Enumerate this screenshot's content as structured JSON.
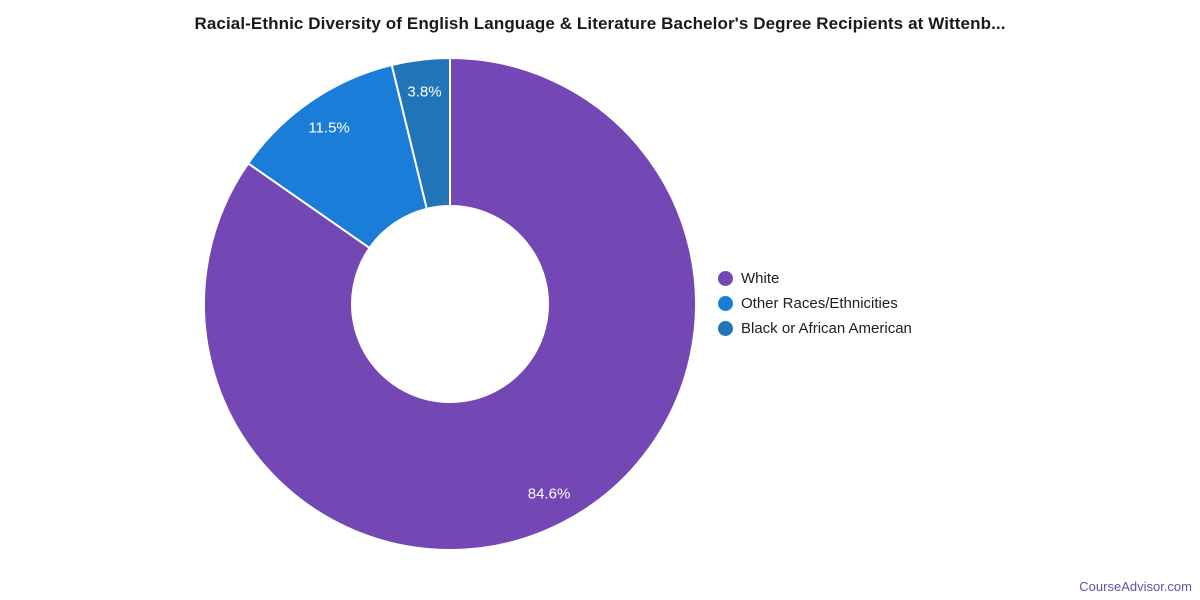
{
  "chart_data": {
    "type": "pie",
    "donut": true,
    "title": "Racial-Ethnic Diversity of English Language & Literature Bachelor's Degree Recipients at Wittenb...",
    "legend_position": "right",
    "start_angle_deg": 0,
    "slices": [
      {
        "label": "White",
        "value": 84.6,
        "display": "84.6%",
        "color": "#7347b4"
      },
      {
        "label": "Other Races/Ethnicities",
        "value": 11.5,
        "display": "11.5%",
        "color": "#1a7dd7"
      },
      {
        "label": "Black or African American",
        "value": 3.8,
        "display": "3.8%",
        "color": "#2274b8"
      }
    ]
  },
  "footer": {
    "link": "CourseAdvisor.com"
  }
}
